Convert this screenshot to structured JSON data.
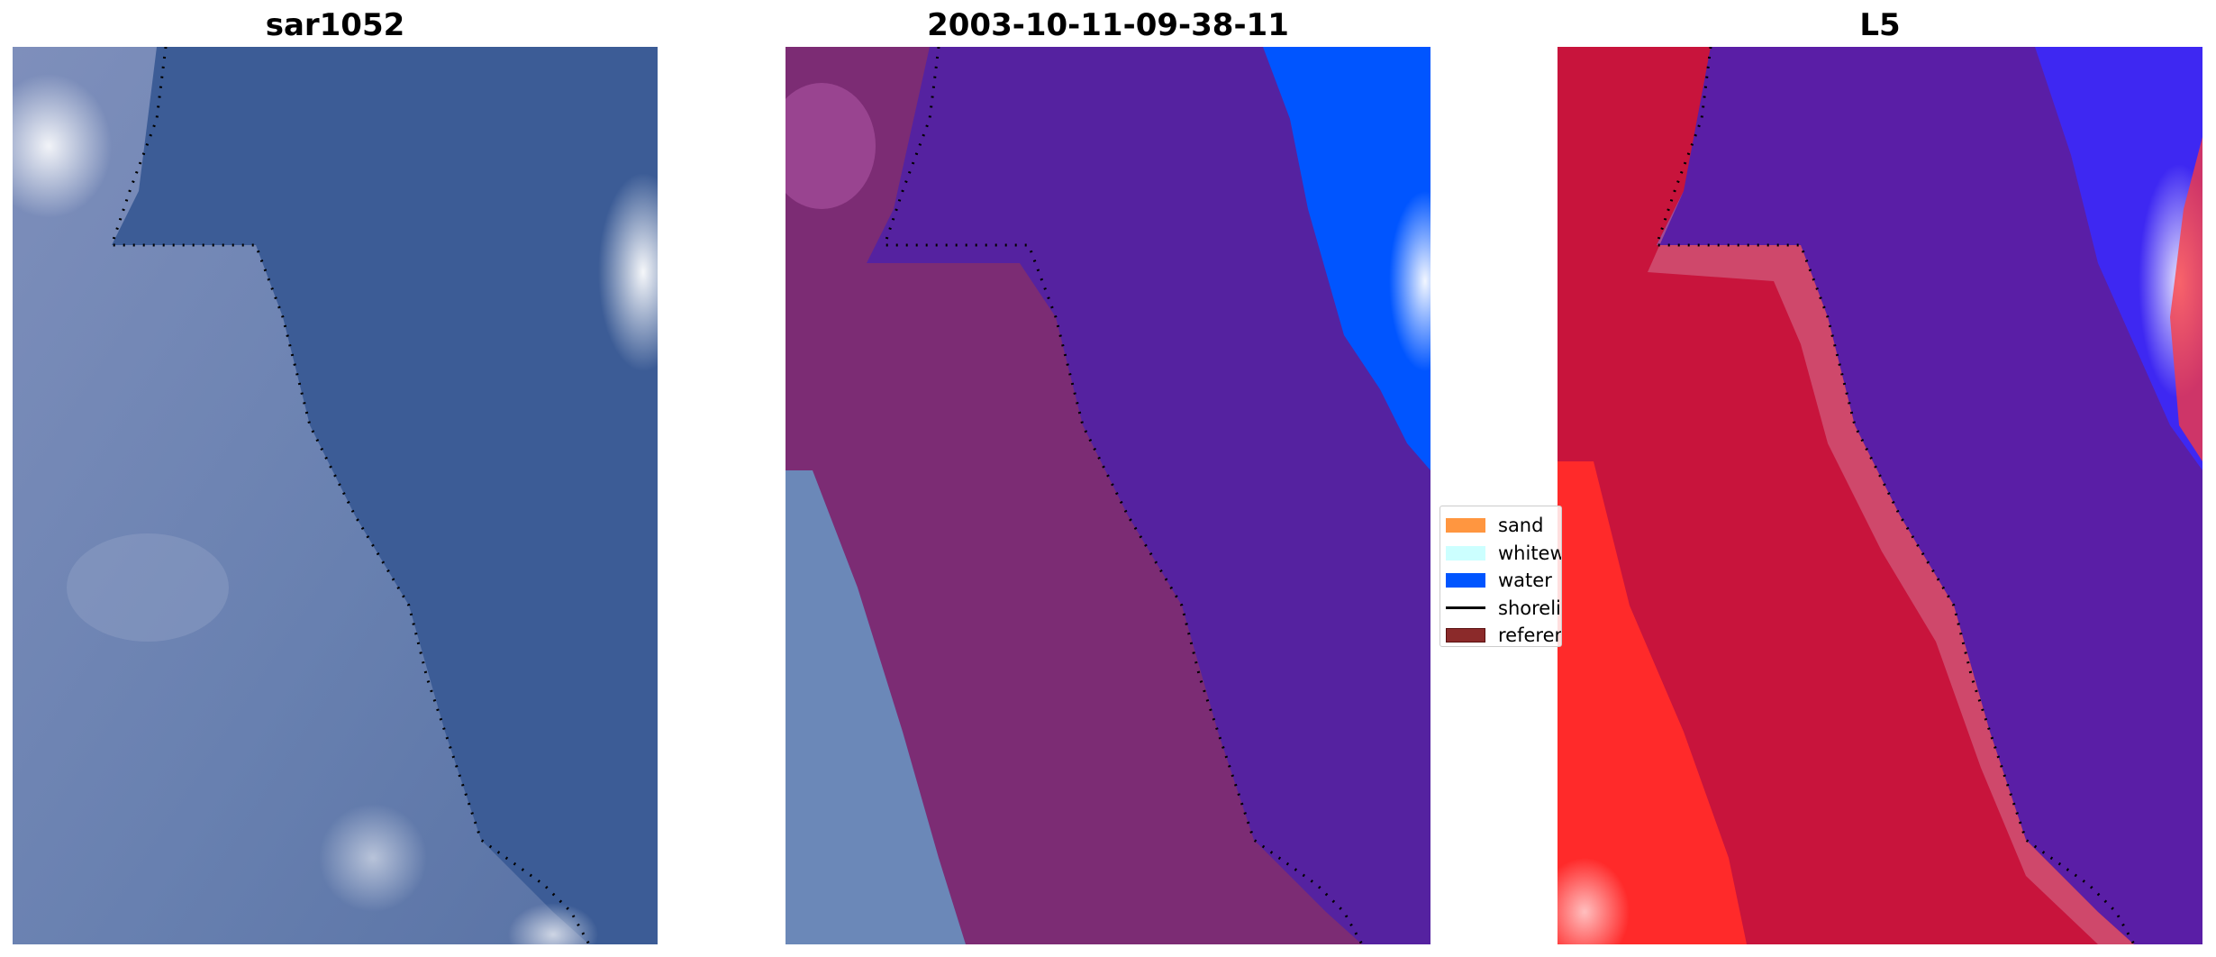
{
  "panels": [
    {
      "id": "rgb",
      "title": "sar1052"
    },
    {
      "id": "classified",
      "title": "2003-10-11-09-38-11"
    },
    {
      "id": "index",
      "title": "L5"
    }
  ],
  "legend": {
    "items": [
      {
        "label": "sand",
        "kind": "patch",
        "color": "#ff9640"
      },
      {
        "label": "whitewater",
        "kind": "patch",
        "color": "#ccffff"
      },
      {
        "label": "water",
        "kind": "patch",
        "color": "#0055ff"
      },
      {
        "label": "shoreline",
        "kind": "line",
        "color": "#000000"
      },
      {
        "label": "reference",
        "kind": "patch",
        "color": "#8b2a2a"
      }
    ]
  },
  "colors": {
    "rgb_water": "#3a5a94",
    "rgb_land": "#6a7fb0",
    "class_water": "#5522a0",
    "class_land": "#7c2c74",
    "class_blue": "#0055ff",
    "index_land": "#c8143c",
    "index_water": "#5a1ea6",
    "index_high": "#ff2a2a"
  }
}
